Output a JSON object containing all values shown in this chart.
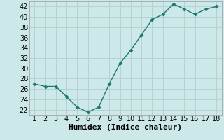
{
  "x": [
    1,
    2,
    3,
    4,
    5,
    6,
    7,
    8,
    9,
    10,
    11,
    12,
    13,
    14,
    15,
    16,
    17,
    18
  ],
  "y": [
    27,
    26.5,
    26.5,
    24.5,
    22.5,
    21.5,
    22.5,
    27,
    31,
    33.5,
    36.5,
    39.5,
    40.5,
    42.5,
    41.5,
    40.5,
    41.5,
    42
  ],
  "line_color": "#1a7a6e",
  "marker": "D",
  "marker_size": 2.5,
  "background_color": "#cde8e8",
  "grid_color": "#b8d0d0",
  "xlabel": "Humidex (Indice chaleur)",
  "ylabel": "",
  "ylim": [
    21,
    43
  ],
  "xlim": [
    0.5,
    18.5
  ],
  "yticks": [
    22,
    24,
    26,
    28,
    30,
    32,
    34,
    36,
    38,
    40,
    42
  ],
  "xticks": [
    1,
    2,
    3,
    4,
    5,
    6,
    7,
    8,
    9,
    10,
    11,
    12,
    13,
    14,
    15,
    16,
    17,
    18
  ],
  "xlabel_fontsize": 8,
  "tick_fontsize": 7,
  "line_width": 1.0
}
